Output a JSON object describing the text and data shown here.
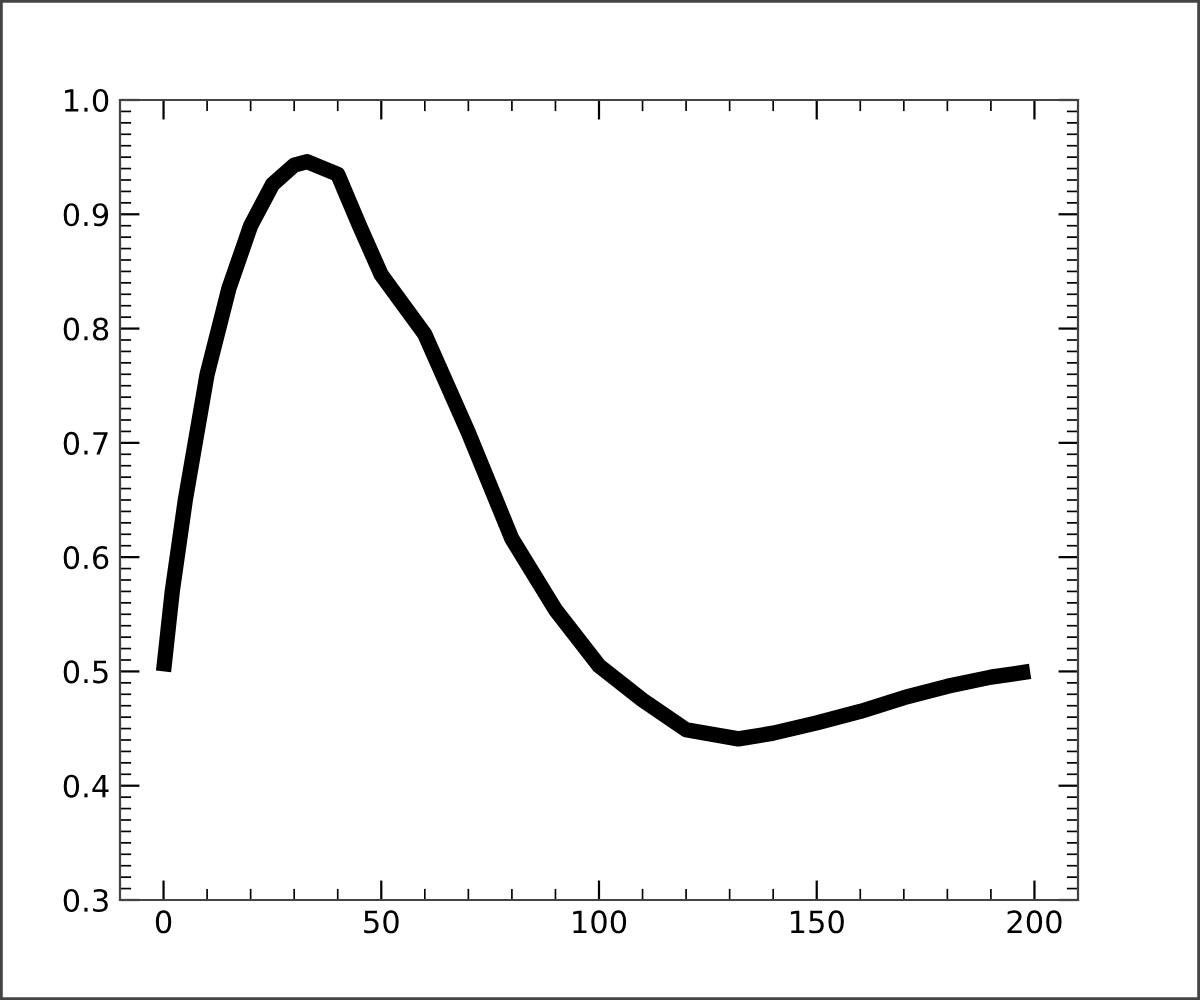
{
  "chart_data": {
    "type": "line",
    "x": [
      0,
      2,
      5,
      10,
      15,
      20,
      25,
      30,
      33,
      40,
      45,
      50,
      60,
      70,
      80,
      90,
      100,
      110,
      120,
      132,
      140,
      150,
      160,
      170,
      180,
      190,
      199
    ],
    "series": [
      {
        "color": "#000000",
        "values": [
          0.5,
          0.57,
          0.65,
          0.76,
          0.835,
          0.89,
          0.926,
          0.943,
          0.946,
          0.935,
          0.89,
          0.847,
          0.795,
          0.709,
          0.616,
          0.554,
          0.505,
          0.475,
          0.449,
          0.441,
          0.446,
          0.455,
          0.465,
          0.477,
          0.487,
          0.495,
          0.5
        ]
      }
    ],
    "xlim": [
      -10,
      210
    ],
    "xticks": [
      0,
      50,
      100,
      150,
      200
    ],
    "ylim": [
      0.3,
      1.0
    ],
    "yticks": [
      {
        "value": 0.3,
        "label": "0.3"
      },
      {
        "value": 0.4,
        "label": "0.4"
      },
      {
        "value": 0.5,
        "label": "0.5"
      },
      {
        "value": 0.6,
        "label": "0.6"
      },
      {
        "value": 0.7,
        "label": "0.7"
      },
      {
        "value": 0.8,
        "label": "0.8"
      },
      {
        "value": 0.9,
        "label": "0.9"
      },
      {
        "value": 1.0,
        "label": "1.0"
      }
    ],
    "grid": false,
    "marker": "none",
    "line_style": "solid"
  }
}
